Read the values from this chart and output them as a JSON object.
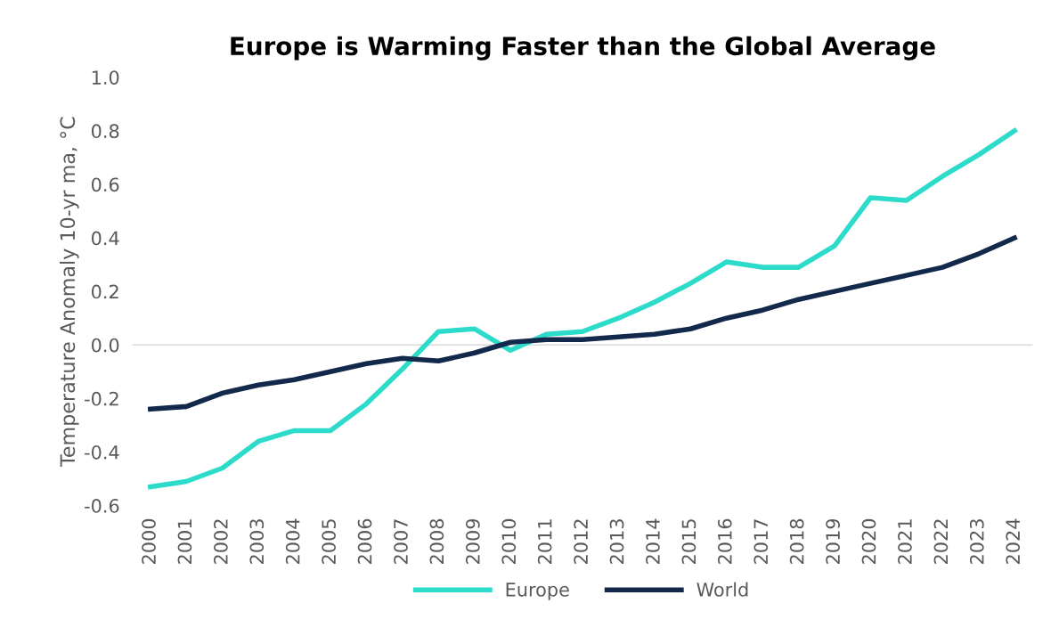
{
  "chart_data": {
    "type": "line",
    "title": "Europe is Warming Faster than the Global Average",
    "ylabel": "Temperature Anomaly 10-yr ma, °C",
    "categories": [
      "2000",
      "2001",
      "2002",
      "2003",
      "2004",
      "2005",
      "2006",
      "2007",
      "2008",
      "2009",
      "2010",
      "2011",
      "2012",
      "2013",
      "2014",
      "2015",
      "2016",
      "2017",
      "2018",
      "2019",
      "2020",
      "2021",
      "2022",
      "2023",
      "2024"
    ],
    "series": [
      {
        "name": "Europe",
        "color": "#2ddbcb",
        "values": [
          -0.53,
          -0.51,
          -0.46,
          -0.36,
          -0.32,
          -0.32,
          -0.22,
          -0.09,
          0.05,
          0.06,
          -0.02,
          0.04,
          0.05,
          0.1,
          0.16,
          0.23,
          0.31,
          0.29,
          0.29,
          0.37,
          0.55,
          0.54,
          0.63,
          0.71,
          0.8
        ]
      },
      {
        "name": "World",
        "color": "#13294b",
        "values": [
          -0.24,
          -0.23,
          -0.18,
          -0.15,
          -0.13,
          -0.1,
          -0.07,
          -0.05,
          -0.06,
          -0.03,
          0.01,
          0.02,
          0.02,
          0.03,
          0.04,
          0.06,
          0.1,
          0.13,
          0.17,
          0.2,
          0.23,
          0.26,
          0.29,
          0.34,
          0.4
        ]
      }
    ],
    "ylim": [
      -0.6,
      1.0
    ],
    "yticks": [
      {
        "value": -0.6,
        "label": "-0.6"
      },
      {
        "value": -0.4,
        "label": "-0.4"
      },
      {
        "value": -0.2,
        "label": "-0.2"
      },
      {
        "value": 0,
        "label": "0.0"
      },
      {
        "value": 0.2,
        "label": "0.2"
      },
      {
        "value": 0.4,
        "label": "0.4"
      },
      {
        "value": 0.6,
        "label": "0.6"
      },
      {
        "value": 0.8,
        "label": "0.8"
      },
      {
        "value": 1.0,
        "label": "1.0"
      }
    ],
    "ref_lines": [
      {
        "axis": "y",
        "value": 0,
        "color": "#d9d9d9"
      }
    ],
    "grid": false,
    "legend": "bottom",
    "marker": "none",
    "line_style": "solid"
  }
}
